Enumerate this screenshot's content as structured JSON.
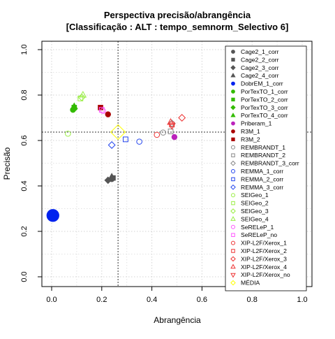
{
  "chart_data": {
    "type": "scatter",
    "title_line1": "Perspectiva precisão/abrangência",
    "title_line2": "[Classificação : ALT : tempo_semnorm_Selectivo 6]",
    "xlabel": "Abrangência",
    "ylabel": "Precisão",
    "xlim": [
      0,
      1
    ],
    "ylim": [
      0,
      1
    ],
    "xticks": [
      "0.0",
      "0.2",
      "0.4",
      "0.6",
      "0.8",
      "1.0"
    ],
    "yticks": [
      "0.0",
      "0.2",
      "0.4",
      "0.6",
      "0.8",
      "1.0"
    ],
    "grid": true,
    "legend_position": "top-right",
    "reference_lines": {
      "x": 0.265,
      "y": 0.637
    },
    "series": [
      {
        "name": "Cage2_1_corr",
        "color": "#555555",
        "shape": "circle",
        "filled": true,
        "x": 0.24,
        "y": 0.43,
        "size": 1
      },
      {
        "name": "Cage2_2_corr",
        "color": "#555555",
        "shape": "square",
        "filled": true,
        "x": 0.245,
        "y": 0.435,
        "size": 1
      },
      {
        "name": "Cage2_3_corr",
        "color": "#555555",
        "shape": "diamond",
        "filled": true,
        "x": 0.225,
        "y": 0.425,
        "size": 1
      },
      {
        "name": "Cage2_4_corr",
        "color": "#555555",
        "shape": "triangle",
        "filled": true,
        "x": 0.24,
        "y": 0.44,
        "size": 1
      },
      {
        "name": "DobrEM_1_corr",
        "color": "#0022ee",
        "shape": "circle",
        "filled": true,
        "x": 0.005,
        "y": 0.27,
        "size": 2.3
      },
      {
        "name": "PorTexTO_1_corr",
        "color": "#33bb00",
        "shape": "circle",
        "filled": true,
        "x": 0.085,
        "y": 0.735,
        "size": 1
      },
      {
        "name": "PorTexTO_2_corr",
        "color": "#33bb00",
        "shape": "square",
        "filled": true,
        "x": 0.09,
        "y": 0.745,
        "size": 1
      },
      {
        "name": "PorTexTO_3_corr",
        "color": "#33bb00",
        "shape": "diamond",
        "filled": true,
        "x": 0.09,
        "y": 0.74,
        "size": 1
      },
      {
        "name": "PorTexTO_4_corr",
        "color": "#33bb00",
        "shape": "triangle",
        "filled": true,
        "x": 0.09,
        "y": 0.75,
        "size": 1
      },
      {
        "name": "Priberam_1",
        "color": "#bb22bb",
        "shape": "circle",
        "filled": true,
        "x": 0.49,
        "y": 0.615,
        "size": 1
      },
      {
        "name": "R3M_1",
        "color": "#aa0000",
        "shape": "circle",
        "filled": true,
        "x": 0.225,
        "y": 0.715,
        "size": 1
      },
      {
        "name": "R3M_2",
        "color": "#aa0000",
        "shape": "square",
        "filled": true,
        "x": 0.195,
        "y": 0.745,
        "size": 1
      },
      {
        "name": "REMBRANDT_1",
        "color": "#888888",
        "shape": "circle",
        "filled": false,
        "x": 0.445,
        "y": 0.635,
        "size": 1
      },
      {
        "name": "REMBRANDT_2",
        "color": "#888888",
        "shape": "square",
        "filled": false,
        "x": 0.475,
        "y": 0.64,
        "size": 1
      },
      {
        "name": "REMBRANDT_3_corr",
        "color": "#888888",
        "shape": "diamond",
        "filled": false,
        "x": 0.48,
        "y": 0.675,
        "size": 1
      },
      {
        "name": "REMMA_1_corr",
        "color": "#2244ee",
        "shape": "circle",
        "filled": false,
        "x": 0.35,
        "y": 0.595,
        "size": 1
      },
      {
        "name": "REMMA_2_corr",
        "color": "#2244ee",
        "shape": "square",
        "filled": false,
        "x": 0.295,
        "y": 0.605,
        "size": 1
      },
      {
        "name": "REMMA_3_corr",
        "color": "#2244ee",
        "shape": "diamond",
        "filled": false,
        "x": 0.24,
        "y": 0.58,
        "size": 1
      },
      {
        "name": "SEIGeo_1",
        "color": "#99ee44",
        "shape": "circle",
        "filled": false,
        "x": 0.065,
        "y": 0.63,
        "size": 1
      },
      {
        "name": "SEIGeo_2",
        "color": "#99ee44",
        "shape": "square",
        "filled": false,
        "x": 0.115,
        "y": 0.785,
        "size": 1
      },
      {
        "name": "SEIGeo_3",
        "color": "#99ee44",
        "shape": "diamond",
        "filled": false,
        "x": 0.12,
        "y": 0.79,
        "size": 1
      },
      {
        "name": "SEIGeo_4",
        "color": "#99ee44",
        "shape": "triangle",
        "filled": false,
        "x": 0.125,
        "y": 0.8,
        "size": 1
      },
      {
        "name": "SeRELeP_1",
        "color": "#ff55ff",
        "shape": "circle",
        "filled": false,
        "x": 0.205,
        "y": 0.73,
        "size": 1
      },
      {
        "name": "SeRELeP_no",
        "color": "#ff55ff",
        "shape": "square",
        "filled": false,
        "x": 0.2,
        "y": 0.735,
        "size": 1
      },
      {
        "name": "XIP-L2F/Xerox_1",
        "color": "#ee3333",
        "shape": "circle",
        "filled": false,
        "x": 0.42,
        "y": 0.625,
        "size": 1
      },
      {
        "name": "XIP-L2F/Xerox_2",
        "color": "#ee3333",
        "shape": "square",
        "filled": false,
        "x": 0.48,
        "y": 0.67,
        "size": 1
      },
      {
        "name": "XIP-L2F/Xerox_3",
        "color": "#ee3333",
        "shape": "diamond",
        "filled": false,
        "x": 0.52,
        "y": 0.7,
        "size": 1
      },
      {
        "name": "XIP-L2F/Xerox_4",
        "color": "#ee3333",
        "shape": "triangle",
        "filled": false,
        "x": 0.475,
        "y": 0.68,
        "size": 1
      },
      {
        "name": "XIP-L2F/Xerox_no",
        "color": "#ee3333",
        "shape": "triangle-down",
        "filled": false,
        "x": 0.48,
        "y": 0.665,
        "size": 1
      },
      {
        "name": "MÉDIA",
        "color": "#ffff00",
        "shape": "diamond",
        "filled": false,
        "x": 0.265,
        "y": 0.637,
        "size": 2.2
      }
    ]
  }
}
